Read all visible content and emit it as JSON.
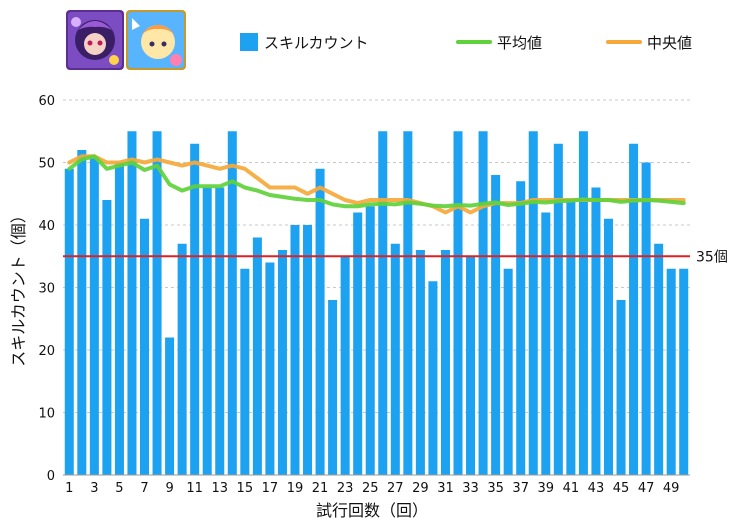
{
  "chart_data": {
    "type": "bar",
    "title": "",
    "xlabel": "試行回数（回）",
    "ylabel": "スキルカウント（個）",
    "ylim": [
      0,
      60
    ],
    "yticks": [
      0,
      10,
      20,
      30,
      40,
      50,
      60
    ],
    "grid": "horizontal dashed",
    "legend_position": "top",
    "x": [
      1,
      2,
      3,
      4,
      5,
      6,
      7,
      8,
      9,
      10,
      11,
      12,
      13,
      14,
      15,
      16,
      17,
      18,
      19,
      20,
      21,
      22,
      23,
      24,
      25,
      26,
      27,
      28,
      29,
      30,
      31,
      32,
      33,
      34,
      35,
      36,
      37,
      38,
      39,
      40,
      41,
      42,
      43,
      44,
      45,
      46,
      47,
      48,
      49,
      50
    ],
    "xtick_labels": [
      1,
      3,
      5,
      7,
      9,
      11,
      13,
      15,
      17,
      19,
      21,
      23,
      25,
      27,
      29,
      31,
      33,
      35,
      37,
      39,
      41,
      43,
      45,
      47,
      49
    ],
    "series": [
      {
        "name": "スキルカウント",
        "type": "bar",
        "color": "#1da2f2",
        "values": [
          49,
          52,
          51,
          44,
          50,
          55,
          41,
          55,
          22,
          37,
          53,
          46,
          46,
          55,
          33,
          38,
          34,
          36,
          40,
          40,
          49,
          28,
          35,
          42,
          43,
          55,
          37,
          55,
          36,
          31,
          36,
          55,
          35,
          55,
          48,
          33,
          47,
          55,
          42,
          53,
          44,
          55,
          46,
          41,
          28,
          53,
          50,
          37,
          33,
          33
        ]
      },
      {
        "name": "平均値",
        "type": "line",
        "color": "#5fd13b",
        "values": [
          49,
          50.5,
          51,
          49,
          49.5,
          50,
          48.8,
          49.5,
          46.5,
          45.5,
          46.2,
          46.2,
          46.2,
          47,
          46,
          45.5,
          44.8,
          44.5,
          44.2,
          44,
          44,
          43.3,
          43,
          43,
          43.3,
          43.4,
          43.3,
          43.6,
          43.4,
          43.1,
          43,
          43.2,
          43.1,
          43.4,
          43.6,
          43.2,
          43.4,
          43.7,
          43.6,
          43.8,
          43.9,
          44.1,
          44,
          44,
          43.7,
          43.9,
          44,
          43.9,
          43.7,
          43.5
        ]
      },
      {
        "name": "中央値",
        "type": "line",
        "color": "#f5a93a",
        "values": [
          50,
          51,
          51,
          50,
          50,
          50.5,
          50,
          50.5,
          50,
          49.5,
          50,
          49.5,
          49,
          49.5,
          49,
          47.5,
          46,
          46,
          46,
          45,
          46,
          45,
          44,
          43.5,
          44,
          44,
          44,
          44,
          43.5,
          43,
          42,
          43,
          42,
          43,
          43.5,
          43.5,
          43.5,
          44,
          44,
          44,
          44,
          44,
          44,
          44,
          44,
          44,
          44,
          44,
          44,
          44
        ]
      }
    ],
    "reference_line": {
      "value": 35,
      "label": "35個",
      "color": "#e02020"
    }
  }
}
